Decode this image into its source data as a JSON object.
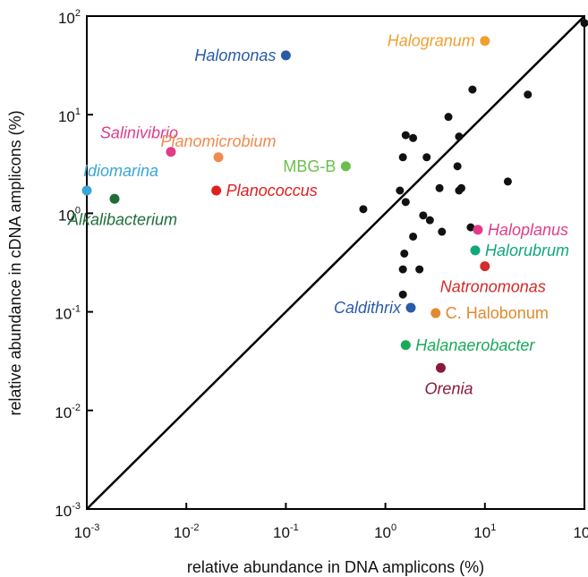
{
  "chart_data": {
    "type": "scatter",
    "xscale": "log",
    "yscale": "log",
    "xlim": [
      0.001,
      100
    ],
    "ylim": [
      0.001,
      100
    ],
    "xlabel": "relative abundance in DNA amplicons (%)",
    "ylabel": "relative abundance in cDNA amplicons (%)",
    "x_ticks": [
      {
        "base": "10",
        "exp": "-3",
        "value": 0.001
      },
      {
        "base": "10",
        "exp": "-2",
        "value": 0.01
      },
      {
        "base": "10",
        "exp": "-1",
        "value": 0.1
      },
      {
        "base": "10",
        "exp": "0",
        "value": 1
      },
      {
        "base": "10",
        "exp": "1",
        "value": 10
      },
      {
        "base": "10",
        "exp": "2",
        "value": 100
      }
    ],
    "y_ticks": [
      {
        "base": "10",
        "exp": "-3",
        "value": 0.001
      },
      {
        "base": "10",
        "exp": "-2",
        "value": 0.01
      },
      {
        "base": "10",
        "exp": "-1",
        "value": 0.1
      },
      {
        "base": "10",
        "exp": "0",
        "value": 1
      },
      {
        "base": "10",
        "exp": "1",
        "value": 10
      },
      {
        "base": "10",
        "exp": "2",
        "value": 100
      }
    ],
    "reference_line": "y = x",
    "grid": false,
    "labeled_points": [
      {
        "label": "Halomonas",
        "x": 0.1,
        "y": 40,
        "color": "#2a5aa8",
        "italic": true,
        "label_side": "left"
      },
      {
        "label": "Halogranum",
        "x": 10,
        "y": 56,
        "color": "#f0a030",
        "italic": true,
        "label_side": "left"
      },
      {
        "label": "Salinivibrio",
        "x": 0.007,
        "y": 4.2,
        "color": "#e03c8a",
        "italic": true,
        "label_side": "above-left"
      },
      {
        "label": "Planomicrobium",
        "x": 0.021,
        "y": 3.7,
        "color": "#f08a50",
        "italic": true,
        "label_side": "above"
      },
      {
        "label": "MBG-B",
        "x": 0.4,
        "y": 3.0,
        "color": "#6abf4b",
        "italic": false,
        "label_side": "left"
      },
      {
        "label": "Idiomarina",
        "x": 0.001,
        "y": 1.7,
        "color": "#3aa6d8",
        "italic": true,
        "label_side": "above-right"
      },
      {
        "label": "Planococcus",
        "x": 0.02,
        "y": 1.7,
        "color": "#e02020",
        "italic": true,
        "label_side": "right"
      },
      {
        "label": "Alkalibacterium",
        "x": 0.0019,
        "y": 1.4,
        "color": "#1f6e3a",
        "italic": true,
        "label_side": "below"
      },
      {
        "label": "Haloplanus",
        "x": 8.5,
        "y": 0.68,
        "color": "#e03c8a",
        "italic": true,
        "label_side": "right"
      },
      {
        "label": "Halorubrum",
        "x": 8.0,
        "y": 0.42,
        "color": "#10a87a",
        "italic": true,
        "label_side": "right"
      },
      {
        "label": "Natronomonas",
        "x": 10,
        "y": 0.29,
        "color": "#d42a2a",
        "italic": true,
        "label_side": "below"
      },
      {
        "label": "Caldithrix",
        "x": 1.8,
        "y": 0.11,
        "color": "#2a5aa8",
        "italic": true,
        "label_side": "left"
      },
      {
        "label": "C. Halobonum",
        "x": 3.2,
        "y": 0.097,
        "color": "#e08a30",
        "italic": false,
        "label_side": "right"
      },
      {
        "label": "Halanaerobacter",
        "x": 1.6,
        "y": 0.046,
        "color": "#1aaa5a",
        "italic": true,
        "label_side": "right"
      },
      {
        "label": "Orenia",
        "x": 3.6,
        "y": 0.027,
        "color": "#8a1a3a",
        "italic": true,
        "label_side": "below"
      }
    ],
    "unlabeled_points": [
      {
        "x": 100,
        "y": 85
      },
      {
        "x": 7.5,
        "y": 18
      },
      {
        "x": 27,
        "y": 16
      },
      {
        "x": 4.3,
        "y": 9.5
      },
      {
        "x": 1.6,
        "y": 6.2
      },
      {
        "x": 1.9,
        "y": 5.8
      },
      {
        "x": 5.5,
        "y": 6.0
      },
      {
        "x": 1.5,
        "y": 3.7
      },
      {
        "x": 2.6,
        "y": 3.7
      },
      {
        "x": 5.3,
        "y": 3.0
      },
      {
        "x": 17,
        "y": 2.1
      },
      {
        "x": 3.5,
        "y": 1.8
      },
      {
        "x": 5.5,
        "y": 1.7
      },
      {
        "x": 5.8,
        "y": 1.8
      },
      {
        "x": 1.4,
        "y": 1.7
      },
      {
        "x": 1.6,
        "y": 1.3
      },
      {
        "x": 0.6,
        "y": 1.1
      },
      {
        "x": 2.4,
        "y": 0.95
      },
      {
        "x": 2.8,
        "y": 0.85
      },
      {
        "x": 7.2,
        "y": 0.72
      },
      {
        "x": 3.7,
        "y": 0.65
      },
      {
        "x": 1.9,
        "y": 0.58
      },
      {
        "x": 1.55,
        "y": 0.39
      },
      {
        "x": 1.5,
        "y": 0.27
      },
      {
        "x": 2.2,
        "y": 0.27
      },
      {
        "x": 1.5,
        "y": 0.15
      }
    ]
  }
}
